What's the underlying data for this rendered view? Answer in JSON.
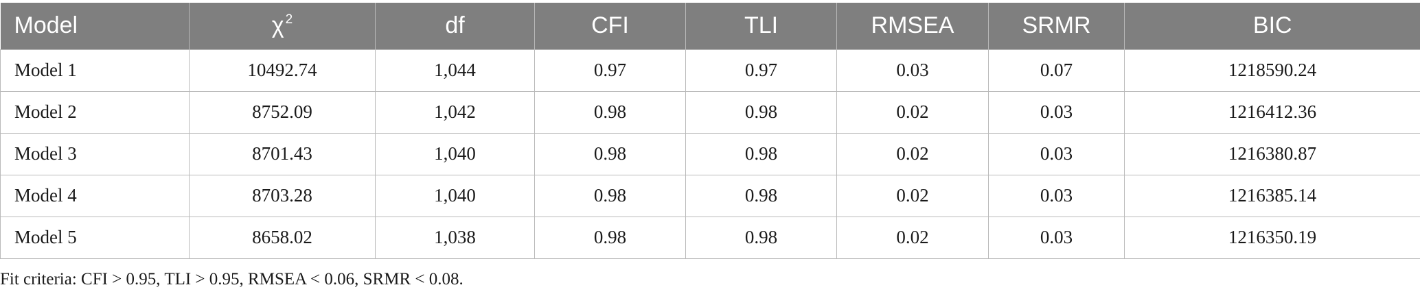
{
  "table": {
    "headers": [
      "Model",
      "χ",
      "df",
      "CFI",
      "TLI",
      "RMSEA",
      "SRMR",
      "BIC"
    ],
    "chi_superscript": "2",
    "rows": [
      [
        "Model 1",
        "10492.74",
        "1,044",
        "0.97",
        "0.97",
        "0.03",
        "0.07",
        "1218590.24"
      ],
      [
        "Model 2",
        "8752.09",
        "1,042",
        "0.98",
        "0.98",
        "0.02",
        "0.03",
        "1216412.36"
      ],
      [
        "Model 3",
        "8701.43",
        "1,040",
        "0.98",
        "0.98",
        "0.02",
        "0.03",
        "1216380.87"
      ],
      [
        "Model 4",
        "8703.28",
        "1,040",
        "0.98",
        "0.98",
        "0.02",
        "0.03",
        "1216385.14"
      ],
      [
        "Model 5",
        "8658.02",
        "1,038",
        "0.98",
        "0.98",
        "0.02",
        "0.03",
        "1216350.19"
      ]
    ]
  },
  "footnote": "Fit criteria: CFI > 0.95, TLI > 0.95, RMSEA < 0.06, SRMR < 0.08.",
  "colors": {
    "header_background": "#7f7f7f",
    "header_text": "#ffffff",
    "grid_lines": "#b9b9b9"
  }
}
